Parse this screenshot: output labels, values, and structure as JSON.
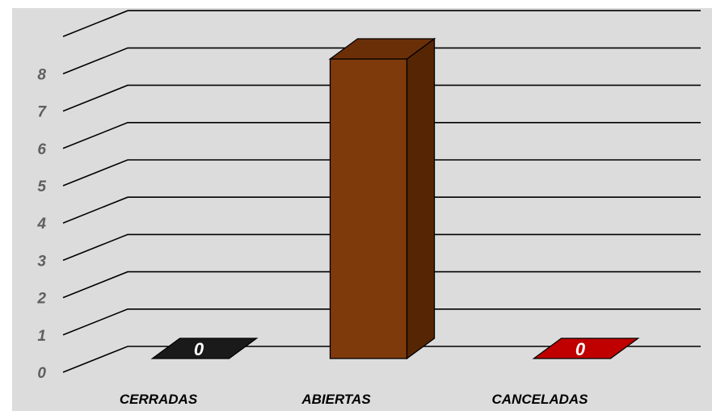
{
  "chart_data": {
    "type": "bar",
    "categories": [
      "CERRADAS",
      "ABIERTAS",
      "CANCELADAS"
    ],
    "values": [
      0,
      8,
      0
    ],
    "data_labels": [
      "0",
      "",
      "0"
    ],
    "yticks": [
      "0",
      "1",
      "2",
      "3",
      "4",
      "5",
      "6",
      "7",
      "8"
    ],
    "ylim": [
      0,
      8
    ],
    "grid": true,
    "three_d": true,
    "colors": {
      "background": "#dcdcdc",
      "grid": "#000000",
      "bars": [
        "#000000",
        "#7f3a0c",
        "#c00000"
      ],
      "bar_sides": [
        "#000000",
        "#562604",
        "#8a0000"
      ],
      "bar_tops": [
        "#1a1a1a",
        "#6b2f08",
        "#c00000"
      ]
    }
  }
}
